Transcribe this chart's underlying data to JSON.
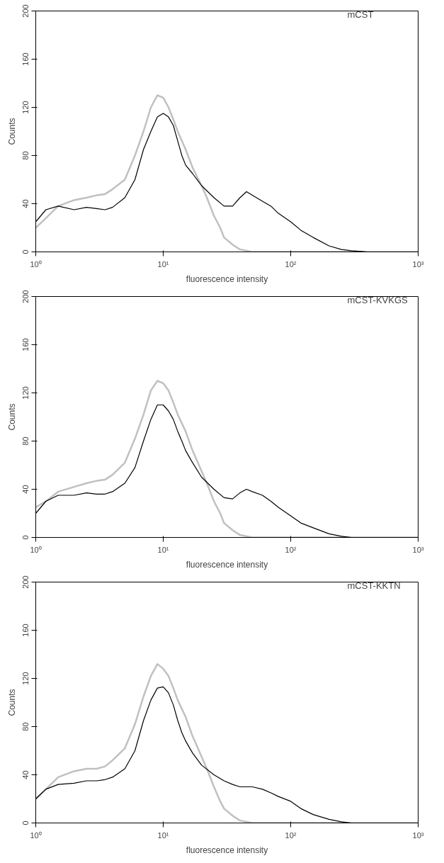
{
  "chart_data": [
    {
      "type": "line",
      "xlabel": "fluorescence intensity",
      "ylabel": "Counts",
      "annotations": [
        "mCST"
      ],
      "log": "x",
      "xlim": [
        1,
        1000
      ],
      "ylim": [
        0,
        200
      ],
      "xticks": [
        {
          "value": 1,
          "label": "10⁰"
        },
        {
          "value": 10,
          "label": "10¹"
        },
        {
          "value": 100,
          "label": "10²"
        },
        {
          "value": 1000,
          "label": "10³"
        }
      ],
      "yticks": [
        0,
        40,
        80,
        120,
        160,
        200
      ],
      "series": [
        {
          "color": "#c0c0c0",
          "x": [
            1,
            1.2,
            1.5,
            2,
            2.5,
            3,
            3.5,
            4,
            5,
            6,
            7,
            8,
            9,
            10,
            11,
            12,
            13,
            15,
            17,
            20,
            22,
            25,
            28,
            30,
            35,
            40,
            50,
            1000
          ],
          "values": [
            20,
            28,
            38,
            43,
            45,
            47,
            48,
            52,
            60,
            80,
            100,
            120,
            130,
            128,
            120,
            110,
            100,
            85,
            70,
            55,
            45,
            30,
            20,
            12,
            6,
            2,
            0,
            0
          ]
        },
        {
          "color": "#000000",
          "x": [
            1,
            1.2,
            1.5,
            2,
            2.5,
            3,
            3.5,
            4,
            5,
            6,
            7,
            8,
            9,
            10,
            11,
            12,
            13,
            14,
            15,
            17,
            20,
            25,
            30,
            35,
            40,
            45,
            50,
            60,
            70,
            80,
            100,
            120,
            150,
            200,
            250,
            300,
            400,
            1000
          ],
          "values": [
            25,
            35,
            38,
            35,
            37,
            36,
            35,
            37,
            45,
            60,
            85,
            100,
            112,
            115,
            112,
            105,
            92,
            80,
            72,
            65,
            55,
            45,
            38,
            38,
            45,
            50,
            47,
            42,
            38,
            32,
            25,
            18,
            12,
            5,
            2,
            1,
            0,
            0
          ]
        }
      ]
    },
    {
      "type": "line",
      "xlabel": "fluorescence intensity",
      "ylabel": "Counts",
      "annotations": [
        "mCST-KVKGS"
      ],
      "log": "x",
      "xlim": [
        1,
        1000
      ],
      "ylim": [
        0,
        200
      ],
      "xticks": [
        {
          "value": 1,
          "label": "10⁰"
        },
        {
          "value": 10,
          "label": "10¹"
        },
        {
          "value": 100,
          "label": "10²"
        },
        {
          "value": 1000,
          "label": "10³"
        }
      ],
      "yticks": [
        0,
        40,
        80,
        120,
        160,
        200
      ],
      "series": [
        {
          "color": "#c0c0c0",
          "x": [
            1,
            1.2,
            1.5,
            2,
            2.5,
            3,
            3.5,
            4,
            5,
            6,
            7,
            8,
            9,
            10,
            11,
            12,
            13,
            15,
            17,
            20,
            22,
            25,
            28,
            30,
            35,
            40,
            50,
            1000
          ],
          "values": [
            25,
            30,
            38,
            42,
            45,
            47,
            48,
            52,
            62,
            82,
            102,
            122,
            130,
            128,
            122,
            112,
            102,
            88,
            72,
            55,
            45,
            30,
            20,
            12,
            6,
            2,
            0,
            0
          ]
        },
        {
          "color": "#000000",
          "x": [
            1,
            1.2,
            1.5,
            2,
            2.5,
            3,
            3.5,
            4,
            5,
            6,
            7,
            8,
            9,
            10,
            11,
            12,
            13,
            14,
            15,
            17,
            20,
            25,
            30,
            35,
            40,
            45,
            50,
            60,
            70,
            80,
            100,
            120,
            150,
            200,
            250,
            300,
            400,
            1000
          ],
          "values": [
            20,
            30,
            35,
            35,
            37,
            36,
            36,
            38,
            45,
            58,
            80,
            98,
            110,
            110,
            105,
            98,
            88,
            80,
            72,
            62,
            50,
            40,
            33,
            32,
            37,
            40,
            38,
            35,
            30,
            25,
            18,
            12,
            8,
            3,
            1,
            0,
            0,
            0
          ]
        }
      ]
    },
    {
      "type": "line",
      "xlabel": "fluorescence intensity",
      "ylabel": "Counts",
      "annotations": [
        "mCST-KKTN"
      ],
      "log": "x",
      "xlim": [
        1,
        1000
      ],
      "ylim": [
        0,
        200
      ],
      "xticks": [
        {
          "value": 1,
          "label": "10⁰"
        },
        {
          "value": 10,
          "label": "10¹"
        },
        {
          "value": 100,
          "label": "10²"
        },
        {
          "value": 1000,
          "label": "10³"
        }
      ],
      "yticks": [
        0,
        40,
        80,
        120,
        160,
        200
      ],
      "series": [
        {
          "color": "#c0c0c0",
          "x": [
            1,
            1.2,
            1.5,
            2,
            2.5,
            3,
            3.5,
            4,
            5,
            6,
            7,
            8,
            9,
            10,
            11,
            12,
            13,
            15,
            17,
            20,
            22,
            25,
            28,
            30,
            35,
            40,
            50,
            1000
          ],
          "values": [
            20,
            28,
            38,
            43,
            45,
            45,
            47,
            52,
            62,
            82,
            105,
            122,
            132,
            128,
            122,
            112,
            102,
            88,
            72,
            55,
            45,
            30,
            18,
            12,
            6,
            2,
            0,
            0
          ]
        },
        {
          "color": "#000000",
          "x": [
            1,
            1.2,
            1.5,
            2,
            2.5,
            3,
            3.5,
            4,
            5,
            6,
            7,
            8,
            9,
            10,
            11,
            12,
            13,
            14,
            15,
            17,
            20,
            25,
            30,
            35,
            40,
            45,
            50,
            60,
            70,
            80,
            100,
            120,
            150,
            200,
            250,
            300,
            400,
            1000
          ],
          "values": [
            20,
            28,
            32,
            33,
            35,
            35,
            36,
            38,
            45,
            60,
            85,
            102,
            112,
            113,
            108,
            98,
            85,
            75,
            68,
            58,
            48,
            40,
            35,
            32,
            30,
            30,
            30,
            28,
            25,
            22,
            18,
            12,
            7,
            3,
            1,
            0,
            0,
            0
          ]
        }
      ]
    }
  ]
}
